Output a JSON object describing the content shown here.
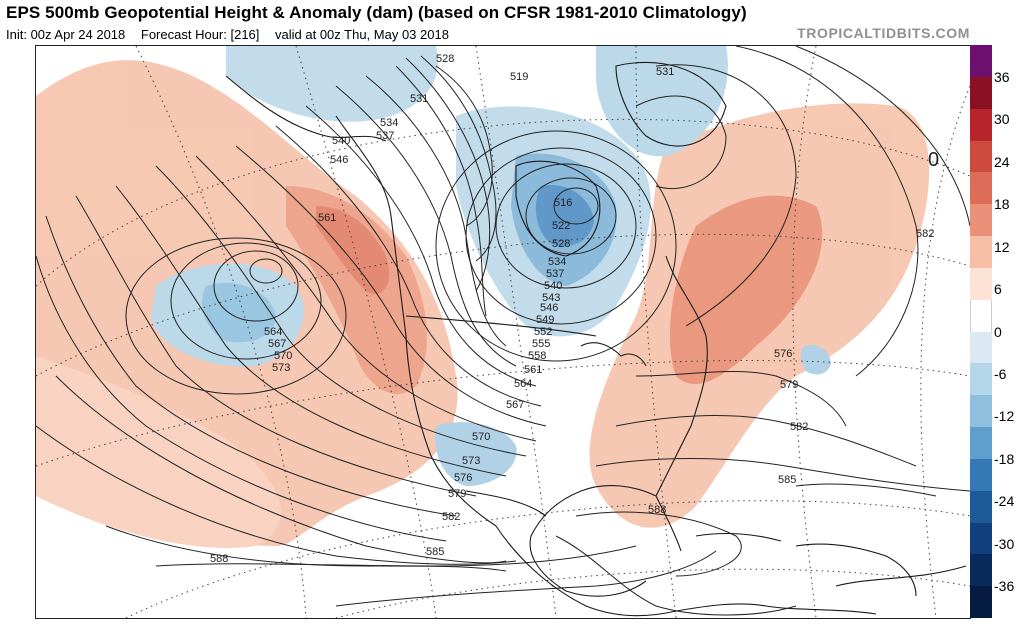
{
  "header": {
    "title": "EPS 500mb Geopotential Height & Anomaly (dam) (based on CFSR 1981-2010 Climatology)",
    "init": "Init: 00z Apr 24 2018",
    "forecast_hour": "Forecast Hour: [216]",
    "valid": "valid at 00z Thu, May 03 2018",
    "brand": "TROPICALTIDBITS.COM"
  },
  "map": {
    "projection": "polar-stereographic",
    "region": "North America",
    "contour_labels": [
      "528",
      "531",
      "534",
      "537",
      "540",
      "546",
      "561",
      "564",
      "567",
      "570",
      "573",
      "519",
      "516",
      "522",
      "528",
      "534",
      "537",
      "540",
      "543",
      "546",
      "549",
      "552",
      "555",
      "558",
      "561",
      "564",
      "567",
      "570",
      "573",
      "576",
      "579",
      "582",
      "531",
      "582",
      "576",
      "579",
      "582",
      "585",
      "588",
      "588",
      "585",
      "0"
    ]
  },
  "colorbar": {
    "ticks": [
      "36",
      "30",
      "24",
      "18",
      "12",
      "6",
      "0",
      "-6",
      "-12",
      "-18",
      "-24",
      "-30",
      "-36"
    ],
    "colors": [
      "#6d0f6e",
      "#8c1023",
      "#b8242b",
      "#cd4a3e",
      "#dd6c58",
      "#ea9279",
      "#f6bfa6",
      "#fde3d6",
      "#ffffff",
      "#dbe9f2",
      "#b5d5e8",
      "#8ec0de",
      "#5f9fcc",
      "#3478b5",
      "#1e5a9a",
      "#123f7d",
      "#0b2a5c",
      "#061b40"
    ]
  }
}
